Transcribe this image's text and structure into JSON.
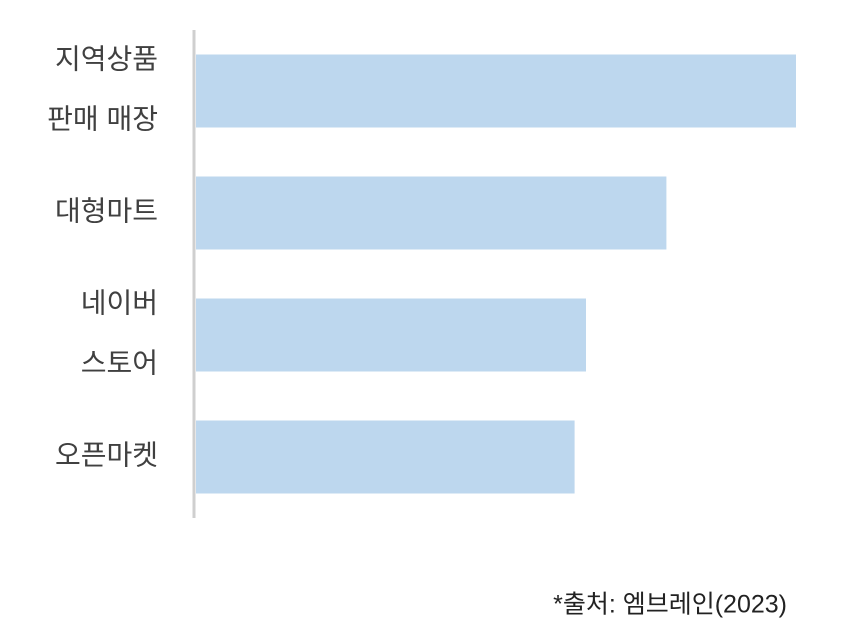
{
  "chart_data": {
    "type": "hbar",
    "categories": [
      [
        "지역상품",
        "판매 매장"
      ],
      [
        "대형마트"
      ],
      [
        "네이버",
        "스토어"
      ],
      [
        "오픈마켓"
      ]
    ],
    "values": [
      100,
      78.4,
      65,
      63.1
    ],
    "color": "#bdd7ee",
    "xlim": [
      0,
      100
    ],
    "source": "*출처: 엠브레인(2023)"
  }
}
